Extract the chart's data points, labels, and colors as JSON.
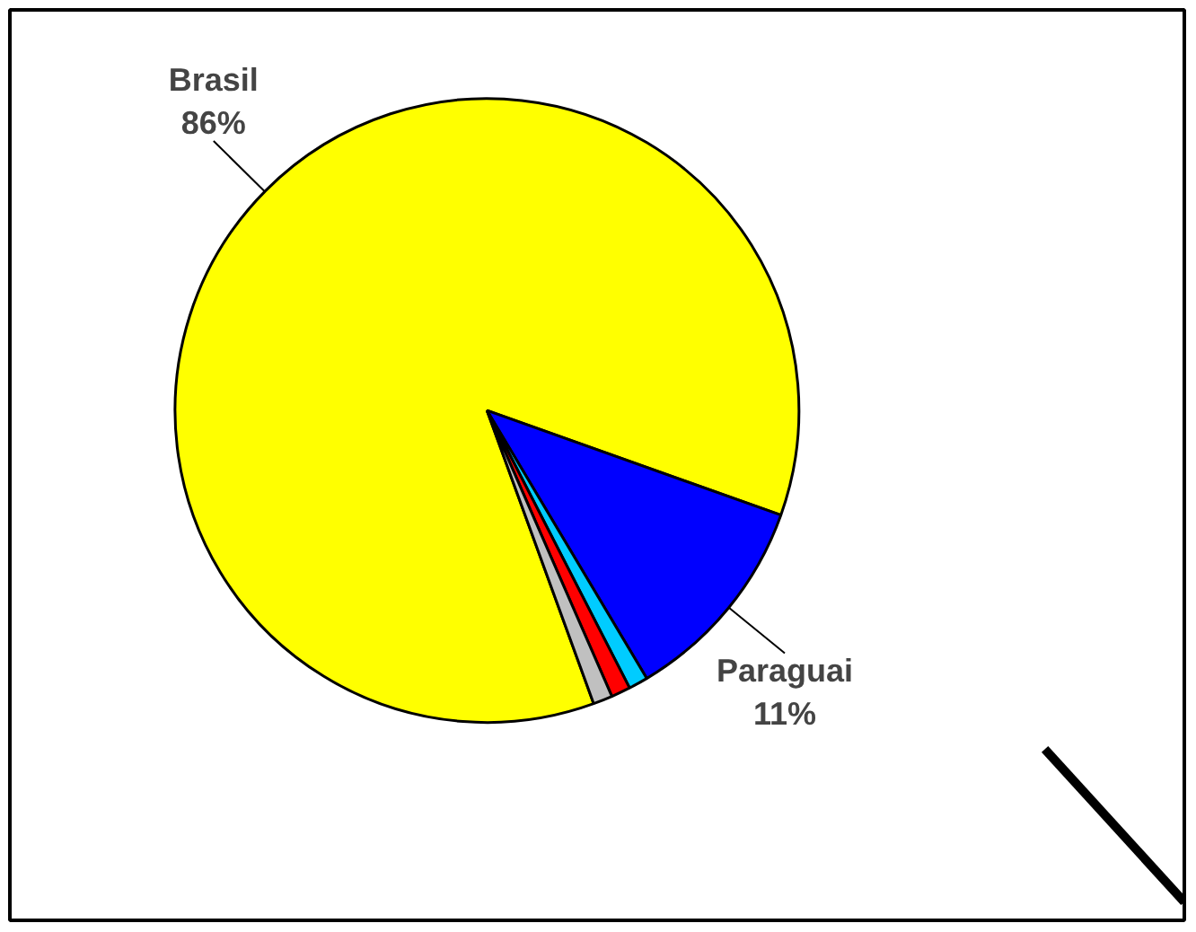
{
  "chart_data": {
    "type": "pie",
    "categories": [
      "Brasil",
      "Paraguai",
      null,
      null,
      null
    ],
    "values": [
      86,
      11,
      1,
      1,
      1
    ],
    "colors": [
      "#ffff00",
      "#0000ff",
      "#00ccff",
      "#ff0000",
      "#c0c0c0"
    ],
    "value_labels": [
      "86%",
      "11%",
      null,
      null,
      null
    ]
  }
}
